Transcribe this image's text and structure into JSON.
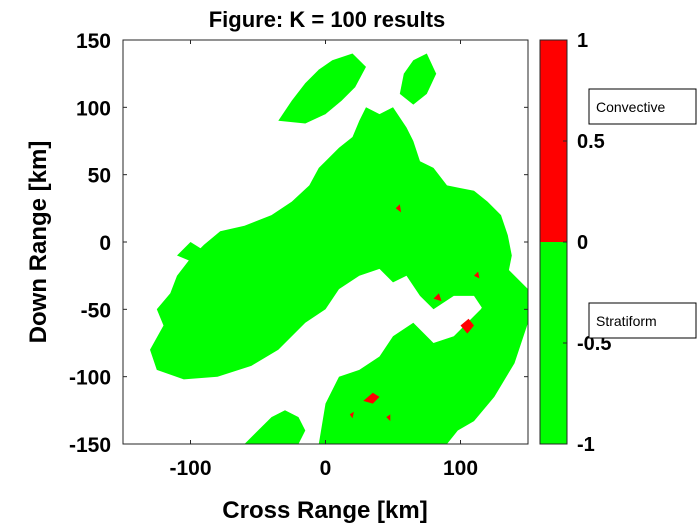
{
  "chart_data": {
    "type": "heatmap",
    "title": "Figure: K = 100 results",
    "xlabel": "Cross Range [km]",
    "ylabel": "Down Range [km]",
    "xlim": [
      -150,
      150
    ],
    "ylim": [
      -150,
      150
    ],
    "x_ticks": [
      -100,
      0,
      100
    ],
    "y_ticks": [
      150,
      100,
      50,
      0,
      -50,
      -100,
      -150
    ],
    "grid": false,
    "classes": [
      {
        "name": "Convective",
        "value": 1,
        "color": "#ff0000"
      },
      {
        "name": "Stratiform",
        "value": -1,
        "color": "#00ff00"
      }
    ],
    "colorbar": {
      "range": [
        -1,
        1
      ],
      "ticks": [
        1,
        0.5,
        0,
        -0.5,
        -1
      ],
      "tick_labels": [
        "1",
        "0.5",
        "0",
        "-0.5",
        "-1"
      ],
      "segments": [
        {
          "from": 0,
          "to": 1,
          "color": "#ff0000"
        },
        {
          "from": -1,
          "to": 0,
          "color": "#00ff00"
        }
      ]
    },
    "annotations": [
      "Convective",
      "Stratiform"
    ],
    "stratiform_regions": [
      [
        [
          -125,
          -95
        ],
        [
          -130,
          -80
        ],
        [
          -120,
          -62
        ],
        [
          -125,
          -50
        ],
        [
          -115,
          -38
        ],
        [
          -110,
          -25
        ],
        [
          -100,
          -12
        ],
        [
          -90,
          -2
        ],
        [
          -78,
          8
        ],
        [
          -60,
          12
        ],
        [
          -40,
          20
        ],
        [
          -25,
          30
        ],
        [
          -12,
          42
        ],
        [
          -5,
          55
        ],
        [
          0,
          60
        ],
        [
          10,
          70
        ],
        [
          20,
          78
        ],
        [
          25,
          90
        ],
        [
          30,
          100
        ],
        [
          40,
          95
        ],
        [
          50,
          100
        ],
        [
          60,
          85
        ],
        [
          65,
          75
        ],
        [
          70,
          60
        ],
        [
          80,
          55
        ],
        [
          90,
          42
        ],
        [
          100,
          40
        ],
        [
          110,
          38
        ],
        [
          120,
          30
        ],
        [
          130,
          20
        ],
        [
          135,
          5
        ],
        [
          138,
          -10
        ],
        [
          135,
          -25
        ],
        [
          130,
          -40
        ],
        [
          120,
          -55
        ],
        [
          110,
          -40
        ],
        [
          95,
          -40
        ],
        [
          80,
          -50
        ],
        [
          70,
          -40
        ],
        [
          60,
          -25
        ],
        [
          50,
          -30
        ],
        [
          40,
          -20
        ],
        [
          25,
          -25
        ],
        [
          10,
          -35
        ],
        [
          0,
          -50
        ],
        [
          -15,
          -60
        ],
        [
          -35,
          -80
        ],
        [
          -55,
          -92
        ],
        [
          -80,
          -100
        ],
        [
          -105,
          -102
        ]
      ],
      [
        [
          -5,
          -150
        ],
        [
          0,
          -120
        ],
        [
          10,
          -100
        ],
        [
          25,
          -95
        ],
        [
          40,
          -85
        ],
        [
          50,
          -70
        ],
        [
          65,
          -60
        ],
        [
          80,
          -75
        ],
        [
          95,
          -70
        ],
        [
          105,
          -60
        ],
        [
          115,
          -50
        ],
        [
          125,
          -35
        ],
        [
          135,
          -20
        ],
        [
          150,
          -35
        ],
        [
          150,
          -60
        ],
        [
          140,
          -90
        ],
        [
          125,
          -115
        ],
        [
          110,
          -133
        ],
        [
          98,
          -140
        ],
        [
          90,
          -150
        ]
      ],
      [
        [
          -60,
          -150
        ],
        [
          -50,
          -140
        ],
        [
          -40,
          -130
        ],
        [
          -30,
          -125
        ],
        [
          -20,
          -130
        ],
        [
          -15,
          -140
        ],
        [
          -20,
          -150
        ]
      ],
      [
        [
          -35,
          90
        ],
        [
          -25,
          105
        ],
        [
          -15,
          118
        ],
        [
          -5,
          128
        ],
        [
          5,
          135
        ],
        [
          20,
          140
        ],
        [
          30,
          130
        ],
        [
          22,
          115
        ],
        [
          12,
          105
        ],
        [
          0,
          95
        ],
        [
          -15,
          88
        ]
      ],
      [
        [
          55,
          110
        ],
        [
          58,
          125
        ],
        [
          65,
          135
        ],
        [
          75,
          140
        ],
        [
          82,
          125
        ],
        [
          75,
          110
        ],
        [
          65,
          102
        ]
      ],
      [
        [
          -20,
          25
        ],
        [
          -10,
          30
        ],
        [
          0,
          35
        ],
        [
          5,
          25
        ],
        [
          -5,
          15
        ],
        [
          -15,
          18
        ]
      ],
      [
        [
          -110,
          -10
        ],
        [
          -100,
          0
        ],
        [
          -92,
          -5
        ],
        [
          -98,
          -15
        ]
      ]
    ],
    "convective_regions": [
      [
        [
          28,
          -118
        ],
        [
          35,
          -112
        ],
        [
          40,
          -115
        ],
        [
          35,
          -120
        ]
      ],
      [
        [
          100,
          -62
        ],
        [
          106,
          -57
        ],
        [
          110,
          -62
        ],
        [
          105,
          -68
        ]
      ],
      [
        [
          80,
          -42
        ],
        [
          84,
          -38
        ],
        [
          86,
          -44
        ]
      ],
      [
        [
          52,
          25
        ],
        [
          55,
          28
        ],
        [
          56,
          22
        ]
      ],
      [
        [
          45,
          -130
        ],
        [
          48,
          -128
        ],
        [
          48,
          -133
        ]
      ],
      [
        [
          18,
          -128
        ],
        [
          21,
          -126
        ],
        [
          20,
          -131
        ]
      ],
      [
        [
          110,
          -25
        ],
        [
          113,
          -22
        ],
        [
          114,
          -27
        ]
      ]
    ]
  }
}
